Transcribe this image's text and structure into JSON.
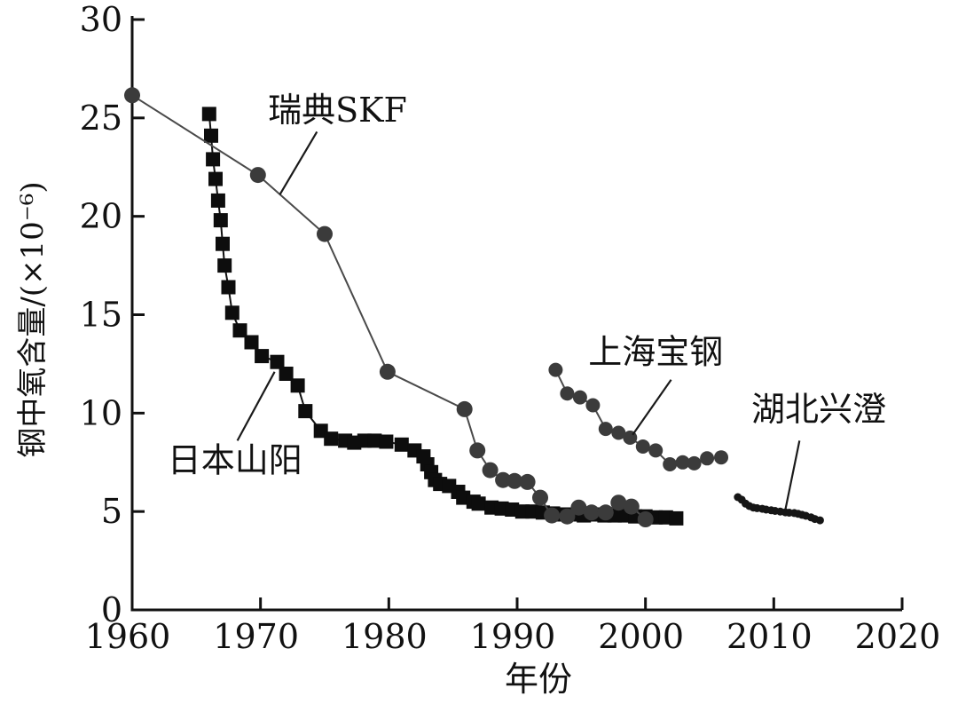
{
  "figure": {
    "background": "#ffffff",
    "text_color": "#111111",
    "axis_color": "#111111"
  },
  "chart_data": {
    "type": "scatter",
    "title": "",
    "xlabel": "年份",
    "ylabel": "钢中氧含量/(×10⁻⁶)",
    "xlim": [
      1960,
      2020
    ],
    "ylim": [
      0,
      30
    ],
    "xticks": [
      1960,
      1970,
      1980,
      1990,
      2000,
      2010,
      2020
    ],
    "yticks": [
      0,
      5,
      10,
      15,
      20,
      25,
      30
    ],
    "grid": false,
    "legend_position": "none-inline-annotations",
    "series": [
      {
        "id": "japan-sanyo",
        "name": "日本山阳",
        "marker": "square",
        "marker_size": 16,
        "color": "#0d0d0d",
        "line_color": "#111111",
        "line_width": 2,
        "points": [
          [
            1966.0,
            25.2
          ],
          [
            1966.15,
            24.1
          ],
          [
            1966.3,
            22.9
          ],
          [
            1966.5,
            21.9
          ],
          [
            1966.7,
            20.8
          ],
          [
            1966.9,
            19.8
          ],
          [
            1967.05,
            18.6
          ],
          [
            1967.2,
            17.5
          ],
          [
            1967.5,
            16.4
          ],
          [
            1967.8,
            15.1
          ],
          [
            1968.4,
            14.2
          ],
          [
            1969.3,
            13.6
          ],
          [
            1970.1,
            12.9
          ],
          [
            1971.3,
            12.6
          ],
          [
            1972.0,
            12.0
          ],
          [
            1972.9,
            11.4
          ],
          [
            1973.5,
            10.1
          ],
          [
            1974.7,
            9.1
          ],
          [
            1975.5,
            8.7
          ],
          [
            1976.6,
            8.6
          ],
          [
            1977.3,
            8.5
          ],
          [
            1978.1,
            8.6
          ],
          [
            1978.9,
            8.6
          ],
          [
            1979.8,
            8.55
          ],
          [
            1981.0,
            8.4
          ],
          [
            1982.0,
            8.1
          ],
          [
            1982.7,
            7.8
          ],
          [
            1983.0,
            7.4
          ],
          [
            1983.3,
            7.0
          ],
          [
            1983.6,
            6.6
          ],
          [
            1984.0,
            6.4
          ],
          [
            1984.7,
            6.3
          ],
          [
            1985.4,
            6.0
          ],
          [
            1985.8,
            5.7
          ],
          [
            1986.6,
            5.5
          ],
          [
            1987.0,
            5.4
          ],
          [
            1988.0,
            5.2
          ],
          [
            1988.8,
            5.15
          ],
          [
            1989.6,
            5.1
          ],
          [
            1990.4,
            5.0
          ],
          [
            1991.2,
            5.0
          ],
          [
            1992.0,
            4.95
          ],
          [
            1992.8,
            4.9
          ],
          [
            1993.6,
            4.85
          ],
          [
            1994.4,
            4.85
          ],
          [
            1995.2,
            4.8
          ],
          [
            1996.0,
            4.85
          ],
          [
            1996.8,
            4.8
          ],
          [
            1997.6,
            4.8
          ],
          [
            1998.4,
            4.8
          ],
          [
            1999.2,
            4.75
          ],
          [
            2000.0,
            4.75
          ],
          [
            2000.8,
            4.7
          ],
          [
            2001.6,
            4.7
          ],
          [
            2002.4,
            4.65
          ]
        ]
      },
      {
        "id": "sweden-skf",
        "name": "瑞典SKF",
        "marker": "circle",
        "marker_size": 18,
        "color": "#3b3b3b",
        "line_color": "#4a4a4a",
        "line_width": 2,
        "points": [
          [
            1960.0,
            26.15
          ],
          [
            1969.8,
            22.1
          ],
          [
            1975.0,
            19.1
          ],
          [
            1979.9,
            12.1
          ],
          [
            1985.9,
            10.2
          ],
          [
            1986.9,
            8.1
          ],
          [
            1987.9,
            7.1
          ],
          [
            1988.9,
            6.6
          ],
          [
            1989.8,
            6.55
          ],
          [
            1990.8,
            6.5
          ],
          [
            1991.8,
            5.7
          ],
          [
            1992.7,
            4.8
          ],
          [
            1993.9,
            4.75
          ],
          [
            1994.8,
            5.2
          ],
          [
            1995.8,
            4.95
          ],
          [
            1996.9,
            4.95
          ],
          [
            1997.9,
            5.45
          ],
          [
            1998.9,
            5.25
          ],
          [
            2000.0,
            4.6
          ]
        ]
      },
      {
        "id": "shanghai-baosteel",
        "name": "上海宝钢",
        "marker": "circle",
        "marker_size": 16,
        "color": "#3b3b3b",
        "line_color": "#4a4a4a",
        "line_width": 2,
        "points": [
          [
            1993.0,
            12.2
          ],
          [
            1993.9,
            11.0
          ],
          [
            1994.9,
            10.8
          ],
          [
            1995.9,
            10.4
          ],
          [
            1996.9,
            9.2
          ],
          [
            1997.9,
            9.0
          ],
          [
            1998.8,
            8.75
          ],
          [
            1999.8,
            8.3
          ],
          [
            2000.8,
            8.1
          ],
          [
            2001.9,
            7.4
          ],
          [
            2002.9,
            7.5
          ],
          [
            2003.8,
            7.45
          ],
          [
            2004.8,
            7.7
          ],
          [
            2005.9,
            7.75
          ]
        ]
      },
      {
        "id": "hubei-xingcheng",
        "name": "湖北兴澄",
        "marker": "circle",
        "marker_size": 9,
        "color": "#161616",
        "line_color": "#161616",
        "line_width": 3.5,
        "points": [
          [
            2007.2,
            5.73
          ],
          [
            2007.5,
            5.6
          ],
          [
            2007.8,
            5.4
          ],
          [
            2008.1,
            5.28
          ],
          [
            2008.4,
            5.2
          ],
          [
            2008.7,
            5.17
          ],
          [
            2009.1,
            5.14
          ],
          [
            2009.4,
            5.1
          ],
          [
            2009.8,
            5.06
          ],
          [
            2010.1,
            5.03
          ],
          [
            2010.5,
            5.0
          ],
          [
            2010.9,
            4.96
          ],
          [
            2011.2,
            4.94
          ],
          [
            2011.6,
            4.92
          ],
          [
            2011.9,
            4.88
          ],
          [
            2012.2,
            4.83
          ],
          [
            2012.5,
            4.78
          ],
          [
            2012.9,
            4.7
          ],
          [
            2013.2,
            4.62
          ],
          [
            2013.6,
            4.55
          ]
        ]
      }
    ],
    "annotations": [
      {
        "id": "sweden-skf",
        "text": "瑞典SKF",
        "x": 1976.0,
        "y": 25.4,
        "leader": [
          [
            1974.4,
            24.3
          ],
          [
            1971.5,
            21.1
          ]
        ]
      },
      {
        "id": "japan-sanyo",
        "text": "日本山阳",
        "x": 1968.0,
        "y": 7.6,
        "leader": [
          [
            1968.2,
            8.6
          ],
          [
            1971.1,
            12.1
          ]
        ]
      },
      {
        "id": "shanghai-baosteel",
        "text": "上海宝钢",
        "x": 2000.8,
        "y": 13.1,
        "leader": [
          [
            2002.0,
            11.7
          ],
          [
            1999.0,
            8.9
          ]
        ]
      },
      {
        "id": "hubei-xingcheng",
        "text": "湖北兴澄",
        "x": 2013.5,
        "y": 10.2,
        "leader": [
          [
            2012.0,
            8.6
          ],
          [
            2010.9,
            5.1
          ]
        ]
      }
    ]
  }
}
